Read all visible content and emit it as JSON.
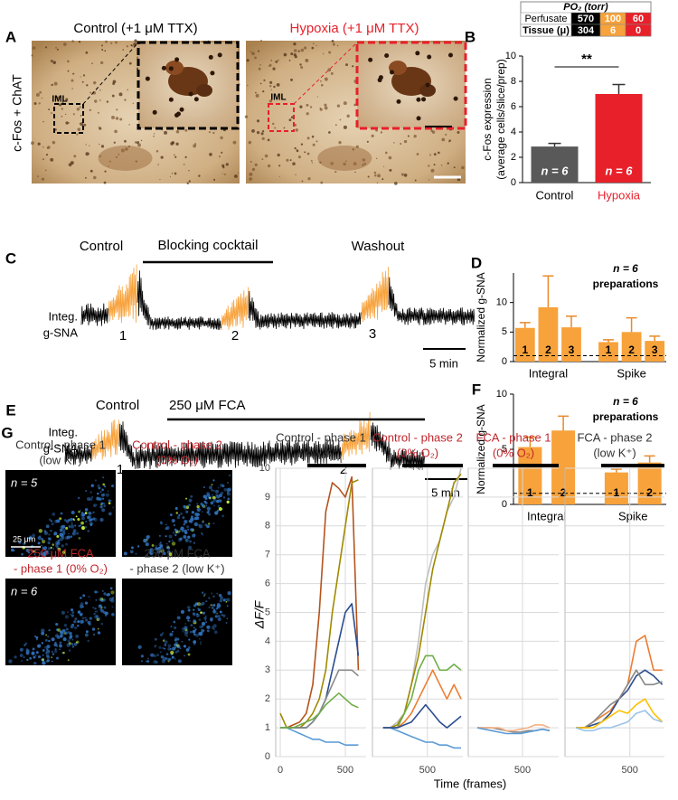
{
  "panels": {
    "A": {
      "label": "A",
      "side_label": "c-Fos + ChAT",
      "titles": [
        "Control (+1 μM TTX)",
        "Hypoxia (+1 μM TTX)"
      ],
      "iml": [
        "IML",
        "IML"
      ]
    },
    "B_table": {
      "title": "PO₂ (torr)",
      "rows": [
        [
          "Perfusate",
          "570",
          "100",
          "60"
        ],
        [
          "Tissue (μ)",
          "304",
          "6",
          "0"
        ]
      ]
    },
    "C": {
      "label": "C",
      "annotations": [
        "Control",
        "Blocking cocktail",
        "Washout"
      ],
      "y_label": [
        "Integ.",
        "g-SNA"
      ],
      "markers": [
        "1",
        "2",
        "3"
      ],
      "scale": "5 min"
    },
    "E": {
      "label": "E",
      "annotations": [
        "Control",
        "250 μM FCA"
      ],
      "y_label": [
        "Integ.",
        "g-SNA"
      ],
      "markers": [
        "1",
        "2"
      ],
      "scale": "5 min"
    },
    "G": {
      "label": "G",
      "captions": [
        [
          "Control - phase 1",
          "(low K⁺)"
        ],
        [
          "Control - phase 2",
          "(0% O₂)"
        ],
        [
          "250 μM FCA",
          "- phase 1 (0% O₂)"
        ],
        [
          "250 μM FCA",
          "- phase 2 (low K⁺)"
        ]
      ],
      "n_labels": [
        "n = 5",
        "n = 6"
      ],
      "scale": "25 μm",
      "x_label": "Time (frames)"
    }
  },
  "chart_data": [
    {
      "type": "bar",
      "panel_label": "B",
      "categories": [
        "Control",
        "Hypoxia"
      ],
      "values": [
        2.85,
        7.0
      ],
      "errors": [
        0.25,
        0.75
      ],
      "colors": [
        "#595959",
        "#e8202a"
      ],
      "label_colors": [
        "#000000",
        "#e8202a"
      ],
      "annotations": [
        "n = 6",
        "n = 6"
      ],
      "significance": "**",
      "ylim": [
        0,
        10
      ],
      "yticks": [
        0,
        2,
        4,
        6,
        8,
        10
      ],
      "y_label": [
        "c-Fos expression",
        "(average cells/slice/prep)"
      ]
    },
    {
      "type": "grouped_bar",
      "panel_label": "D",
      "color": "#f7a23b",
      "reference_line": 1,
      "annotation": [
        "n = 6",
        "preparations"
      ],
      "groups": [
        {
          "name": "Integral",
          "categories": [
            "1",
            "2",
            "3"
          ],
          "values": [
            5.7,
            9.2,
            5.8
          ],
          "errors": [
            0.9,
            5.3,
            1.9
          ]
        },
        {
          "name": "Spike",
          "categories": [
            "1",
            "2",
            "3"
          ],
          "values": [
            3.3,
            5.0,
            3.5
          ],
          "errors": [
            0.4,
            2.4,
            0.8
          ]
        }
      ],
      "ylim": [
        0,
        15
      ],
      "yticks": [
        0,
        5,
        10
      ],
      "y_label": "Normalized g-SNA"
    },
    {
      "type": "grouped_bar",
      "panel_label": "F",
      "color": "#f7a23b",
      "reference_line": 1,
      "annotation": [
        "n = 6",
        "preparations"
      ],
      "groups": [
        {
          "name": "Integral",
          "categories": [
            "1",
            "2"
          ],
          "values": [
            5.2,
            6.7
          ],
          "errors": [
            0.9,
            1.3
          ]
        },
        {
          "name": "Spike",
          "categories": [
            "1",
            "2"
          ],
          "values": [
            2.9,
            3.8
          ],
          "errors": [
            0.3,
            0.6
          ]
        }
      ],
      "ylim": [
        0,
        10
      ],
      "yticks": [
        0,
        5,
        10
      ],
      "y_label": "Normalized g-SNA"
    },
    {
      "type": "line",
      "title": [
        "Control - phase 1",
        "(low K⁺)"
      ],
      "title_color": "#333333",
      "y_label": "ΔF/F",
      "show_ytick_labels": true,
      "xlim": [
        -35,
        660
      ],
      "xticks": [
        0,
        500
      ],
      "ylim": [
        0,
        10
      ],
      "yticks": [
        0,
        1,
        2,
        3,
        4,
        5,
        6,
        7,
        8,
        9,
        10
      ],
      "grid": true,
      "x": [
        0,
        50,
        100,
        150,
        200,
        250,
        300,
        350,
        400,
        450,
        500,
        550,
        600
      ],
      "series": [
        {
          "color": "#b5531c",
          "values": [
            1,
            1,
            1.1,
            1.2,
            1.5,
            2.5,
            5,
            8.5,
            9.5,
            9.3,
            9,
            9.7,
            3
          ]
        },
        {
          "color": "#a08a00",
          "values": [
            1.5,
            1,
            1,
            1,
            1.2,
            1.5,
            2,
            3,
            5,
            6.5,
            8,
            9.5,
            9.6
          ]
        },
        {
          "color": "#2a4d8f",
          "values": [
            1,
            1,
            1,
            1,
            1,
            1.2,
            1.5,
            2,
            3,
            4,
            5,
            5.3,
            3.5
          ]
        },
        {
          "color": "#888888",
          "values": [
            1,
            1,
            1,
            1,
            1,
            1.2,
            1.5,
            2,
            2.5,
            3,
            3,
            3,
            2.8
          ]
        },
        {
          "color": "#5b9bd5",
          "values": [
            1,
            1,
            0.9,
            0.8,
            0.7,
            0.6,
            0.6,
            0.5,
            0.5,
            0.5,
            0.4,
            0.4,
            0.4
          ]
        },
        {
          "color": "#70ad47",
          "values": [
            1,
            1,
            1,
            1.1,
            1.2,
            1.3,
            1.5,
            1.8,
            2,
            2.2,
            2,
            1.8,
            1.7
          ]
        }
      ]
    },
    {
      "type": "line",
      "title": [
        "Control - phase 2",
        "(0% O₂)"
      ],
      "title_color": "#c0272d",
      "show_ytick_labels": false,
      "xlim": [
        -120,
        900
      ],
      "xticks": [
        500
      ],
      "ylim": [
        0,
        10
      ],
      "yticks": [
        0,
        1,
        2,
        3,
        4,
        5,
        6,
        7,
        8,
        9,
        10
      ],
      "grid": true,
      "x": [
        0,
        80,
        160,
        240,
        320,
        400,
        480,
        560,
        640,
        720,
        800,
        880
      ],
      "series": [
        {
          "color": "#bfbfbf",
          "values": [
            1,
            1,
            1.2,
            1.5,
            2.5,
            4,
            6,
            7,
            7.5,
            8.5,
            9,
            10
          ]
        },
        {
          "color": "#a08a00",
          "values": [
            1,
            1,
            1.1,
            1.5,
            2.5,
            3.5,
            5,
            6.5,
            7.5,
            8.5,
            9.5,
            9.8
          ]
        },
        {
          "color": "#70ad47",
          "values": [
            1,
            1,
            1,
            1.5,
            2,
            3,
            3.5,
            3.5,
            3,
            3,
            3.2,
            3
          ]
        },
        {
          "color": "#ed7d31",
          "values": [
            1,
            1,
            1,
            1.2,
            1.5,
            2,
            2.5,
            3,
            2.5,
            2,
            2.5,
            2
          ]
        },
        {
          "color": "#5b9bd5",
          "values": [
            1,
            1,
            0.9,
            0.8,
            0.7,
            0.6,
            0.5,
            0.5,
            0.4,
            0.4,
            0.3,
            0.3
          ]
        },
        {
          "color": "#2a4d8f",
          "values": [
            1,
            1,
            1,
            1.1,
            1.2,
            1.5,
            1.8,
            1.5,
            1.2,
            1,
            1.2,
            1.4
          ]
        }
      ]
    },
    {
      "type": "line",
      "title": [
        "FCA - phase 1",
        "(0% O₂)"
      ],
      "title_color": "#c0272d",
      "show_ytick_labels": false,
      "xlim": [
        -100,
        900
      ],
      "xticks": [
        500
      ],
      "ylim": [
        0,
        10
      ],
      "yticks": [
        0,
        1,
        2,
        3,
        4,
        5,
        6,
        7,
        8,
        9,
        10
      ],
      "grid": true,
      "x": [
        0,
        80,
        160,
        240,
        320,
        400,
        480,
        560,
        640,
        720,
        800
      ],
      "series": [
        {
          "color": "#888888",
          "values": [
            1,
            1,
            1,
            0.95,
            0.9,
            0.85,
            0.85,
            0.9,
            0.9,
            0.95,
            0.9
          ]
        },
        {
          "color": "#f4b183",
          "values": [
            1,
            1,
            1,
            1,
            0.9,
            0.9,
            0.95,
            1,
            1.1,
            1.1,
            1
          ]
        },
        {
          "color": "#5b9bd5",
          "values": [
            1,
            0.95,
            0.9,
            0.85,
            0.8,
            0.8,
            0.8,
            0.85,
            0.9,
            0.95,
            0.9
          ]
        }
      ]
    },
    {
      "type": "line",
      "title": [
        "FCA - phase 2",
        "(low K⁺)"
      ],
      "title_color": "#333333",
      "show_ytick_labels": false,
      "xlim": [
        -100,
        820
      ],
      "xticks": [
        500
      ],
      "ylim": [
        0,
        10
      ],
      "yticks": [
        0,
        1,
        2,
        3,
        4,
        5,
        6,
        7,
        8,
        9,
        10
      ],
      "grid": true,
      "x": [
        0,
        80,
        160,
        240,
        320,
        400,
        480,
        560,
        640,
        720,
        800
      ],
      "series": [
        {
          "color": "#ed7d31",
          "values": [
            1,
            1,
            1.2,
            1.4,
            1.6,
            2,
            2.5,
            4,
            4.2,
            3,
            3
          ]
        },
        {
          "color": "#2a4d8f",
          "values": [
            1,
            1,
            1.1,
            1.2,
            1.5,
            2,
            2.3,
            2.8,
            3,
            2.8,
            2.5
          ]
        },
        {
          "color": "#888888",
          "values": [
            1,
            1,
            1.2,
            1.5,
            1.8,
            2,
            2.5,
            3,
            2.5,
            2.5,
            2.6
          ]
        },
        {
          "color": "#ffc000",
          "values": [
            1,
            1,
            1,
            1.2,
            1.4,
            1.6,
            1.5,
            1.8,
            2,
            1.5,
            1.2
          ]
        },
        {
          "color": "#9dc3e6",
          "values": [
            1,
            0.9,
            0.9,
            1,
            1,
            1.1,
            1.2,
            1.5,
            1.6,
            1.3,
            1.2
          ]
        }
      ]
    }
  ]
}
